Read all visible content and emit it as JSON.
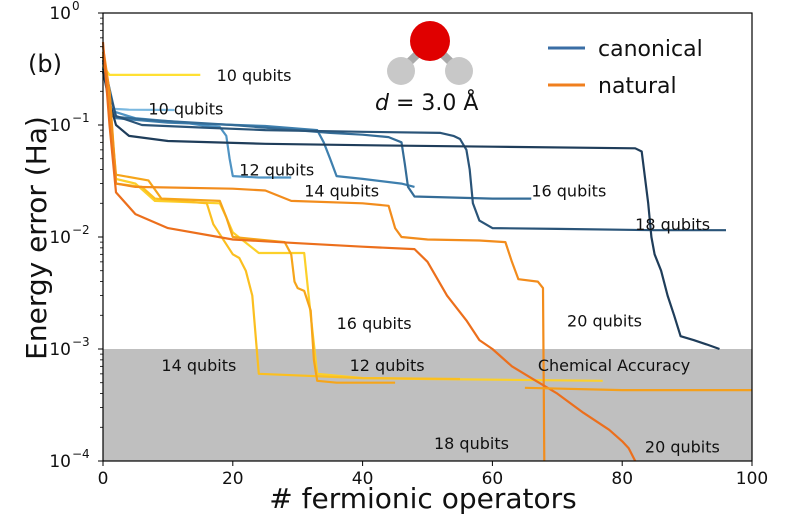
{
  "chart_data": {
    "type": "line",
    "panel_label": "(b)",
    "xlabel": "# fermionic operators",
    "ylabel": "Energy error (Ha)",
    "xlim": [
      0,
      100
    ],
    "ylim_log10": [
      -4,
      0
    ],
    "x_ticks": [
      {
        "value": 0,
        "label": "0"
      },
      {
        "value": 20,
        "label": "20"
      },
      {
        "value": 40,
        "label": "40"
      },
      {
        "value": 60,
        "label": "60"
      },
      {
        "value": 80,
        "label": "80"
      },
      {
        "value": 100,
        "label": "100"
      }
    ],
    "y_ticks": [
      {
        "exp": 0,
        "base": "10",
        "sup": "0"
      },
      {
        "exp": -1,
        "base": "10",
        "sup": "−1"
      },
      {
        "exp": -2,
        "base": "10",
        "sup": "−2"
      },
      {
        "exp": -3,
        "base": "10",
        "sup": "−3"
      },
      {
        "exp": -4,
        "base": "10",
        "sup": "−4"
      }
    ],
    "chemical_accuracy": {
      "label": "Chemical Accuracy",
      "threshold": 0.001,
      "color": "#bfbfbf"
    },
    "molecule": {
      "d_prefix": "d",
      "d_suffix": " = 3.0 Å",
      "oxygen_color": "#e00000",
      "hydrogen_color": "#c8c8c8"
    },
    "legend": [
      {
        "label": "canonical",
        "color": "#3a6ea5"
      },
      {
        "label": "natural",
        "color": "#f07f1e"
      }
    ],
    "series": [
      {
        "name": "canonical 10 qubits",
        "group": "canonical",
        "color": "#7ab8e0",
        "points": [
          [
            0,
            0.33
          ],
          [
            1,
            0.14
          ],
          [
            4,
            0.137
          ],
          [
            11,
            0.136
          ]
        ]
      },
      {
        "name": "canonical 12 qubits",
        "group": "canonical",
        "color": "#4f93c3",
        "points": [
          [
            0,
            0.38
          ],
          [
            1,
            0.145
          ],
          [
            2,
            0.13
          ],
          [
            5,
            0.115
          ],
          [
            12,
            0.106
          ],
          [
            16,
            0.098
          ],
          [
            18,
            0.096
          ],
          [
            19,
            0.08
          ],
          [
            19.5,
            0.05
          ],
          [
            20,
            0.035
          ],
          [
            24,
            0.034
          ],
          [
            29,
            0.034
          ]
        ]
      },
      {
        "name": "canonical 14 qubits",
        "group": "canonical",
        "color": "#3e7fae",
        "points": [
          [
            0,
            0.36
          ],
          [
            2,
            0.115
          ],
          [
            10,
            0.105
          ],
          [
            25,
            0.098
          ],
          [
            33,
            0.09
          ],
          [
            34,
            0.07
          ],
          [
            35,
            0.05
          ],
          [
            36,
            0.035
          ],
          [
            40,
            0.033
          ],
          [
            46,
            0.03
          ],
          [
            48,
            0.028
          ]
        ]
      },
      {
        "name": "canonical 16 qubits",
        "group": "canonical",
        "color": "#346c97",
        "points": [
          [
            0,
            0.38
          ],
          [
            2,
            0.118
          ],
          [
            8,
            0.11
          ],
          [
            20,
            0.1
          ],
          [
            35,
            0.085
          ],
          [
            40,
            0.082
          ],
          [
            44,
            0.078
          ],
          [
            46,
            0.07
          ],
          [
            46.5,
            0.045
          ],
          [
            47,
            0.028
          ],
          [
            48,
            0.023
          ],
          [
            60,
            0.022
          ],
          [
            66,
            0.022
          ]
        ]
      },
      {
        "name": "canonical 18 qubits",
        "group": "canonical",
        "color": "#2a5478",
        "points": [
          [
            0,
            0.32
          ],
          [
            2,
            0.12
          ],
          [
            6,
            0.1
          ],
          [
            15,
            0.095
          ],
          [
            25,
            0.09
          ],
          [
            40,
            0.087
          ],
          [
            52,
            0.085
          ],
          [
            54,
            0.08
          ],
          [
            55,
            0.075
          ],
          [
            56,
            0.06
          ],
          [
            56.5,
            0.04
          ],
          [
            57,
            0.02
          ],
          [
            58,
            0.014
          ],
          [
            60,
            0.012
          ],
          [
            70,
            0.0118
          ],
          [
            85,
            0.0115
          ],
          [
            96,
            0.0115
          ]
        ]
      },
      {
        "name": "canonical 20 qubits",
        "group": "canonical",
        "color": "#1f3d5a",
        "points": [
          [
            0,
            0.3
          ],
          [
            1,
            0.16
          ],
          [
            2,
            0.1
          ],
          [
            4,
            0.08
          ],
          [
            10,
            0.072
          ],
          [
            25,
            0.068
          ],
          [
            40,
            0.066
          ],
          [
            60,
            0.064
          ],
          [
            82,
            0.062
          ],
          [
            83,
            0.058
          ],
          [
            84,
            0.02
          ],
          [
            84.5,
            0.01
          ],
          [
            85,
            0.007
          ],
          [
            86,
            0.005
          ],
          [
            87,
            0.003
          ],
          [
            88,
            0.002
          ],
          [
            89,
            0.0013
          ],
          [
            91,
            0.0012
          ],
          [
            93,
            0.0011
          ],
          [
            95,
            0.001
          ]
        ]
      },
      {
        "name": "natural 10 qubits",
        "group": "natural",
        "color": "#ffe033",
        "points": [
          [
            0,
            0.34
          ],
          [
            1,
            0.28
          ],
          [
            15,
            0.28
          ]
        ]
      },
      {
        "name": "natural 12 qubits",
        "group": "natural",
        "color": "#fcd02a",
        "points": [
          [
            0,
            0.4
          ],
          [
            1,
            0.2
          ],
          [
            2,
            0.033
          ],
          [
            5,
            0.03
          ],
          [
            8,
            0.021
          ],
          [
            18,
            0.02
          ],
          [
            19,
            0.015
          ],
          [
            20,
            0.011
          ],
          [
            24,
            0.0072
          ],
          [
            31,
            0.0072
          ],
          [
            32,
            0.002
          ],
          [
            33,
            0.0006
          ],
          [
            40,
            0.00055
          ],
          [
            50,
            0.00054
          ],
          [
            77,
            0.00052
          ]
        ]
      },
      {
        "name": "natural 14 qubits",
        "group": "natural",
        "color": "#fbbf20",
        "points": [
          [
            0,
            0.42
          ],
          [
            1,
            0.18
          ],
          [
            2,
            0.03
          ],
          [
            6,
            0.028
          ],
          [
            8,
            0.022
          ],
          [
            16,
            0.02
          ],
          [
            17,
            0.013
          ],
          [
            20,
            0.007
          ],
          [
            21,
            0.0065
          ],
          [
            22,
            0.005
          ],
          [
            23,
            0.003
          ],
          [
            24,
            0.0006
          ],
          [
            40,
            0.00055
          ],
          [
            55,
            0.00054
          ]
        ]
      },
      {
        "name": "natural 16 qubits",
        "group": "natural",
        "color": "#f6a51a",
        "points": [
          [
            0,
            0.45
          ],
          [
            1,
            0.15
          ],
          [
            2,
            0.036
          ],
          [
            7,
            0.032
          ],
          [
            9,
            0.022
          ],
          [
            18,
            0.021
          ],
          [
            19,
            0.015
          ],
          [
            20,
            0.01
          ],
          [
            28,
            0.009
          ],
          [
            29,
            0.007
          ],
          [
            29.5,
            0.004
          ],
          [
            30,
            0.0035
          ],
          [
            31,
            0.0033
          ],
          [
            32,
            0.0022
          ],
          [
            32.5,
            0.0008
          ],
          [
            33,
            0.00052
          ],
          [
            36,
            0.0005
          ],
          [
            45,
            0.0005
          ]
        ]
      },
      {
        "name": "natural 18 qubits",
        "group": "natural",
        "color": "#f28c1c",
        "points": [
          [
            0,
            0.5
          ],
          [
            1,
            0.2
          ],
          [
            2,
            0.03
          ],
          [
            5,
            0.028
          ],
          [
            20,
            0.027
          ],
          [
            25,
            0.026
          ],
          [
            29,
            0.021
          ],
          [
            40,
            0.02
          ],
          [
            44,
            0.019
          ],
          [
            45,
            0.012
          ],
          [
            46,
            0.01
          ],
          [
            50,
            0.0095
          ],
          [
            58,
            0.0093
          ],
          [
            62,
            0.009
          ],
          [
            63,
            0.006
          ],
          [
            64,
            0.0042
          ],
          [
            67,
            0.004
          ],
          [
            67.8,
            0.0035
          ],
          [
            68,
            0.0001
          ]
        ]
      },
      {
        "name": "natural 20 qubits",
        "group": "natural",
        "color": "#ec6f1c",
        "points": [
          [
            0,
            0.55
          ],
          [
            1,
            0.1
          ],
          [
            2,
            0.025
          ],
          [
            5,
            0.016
          ],
          [
            10,
            0.012
          ],
          [
            20,
            0.0095
          ],
          [
            30,
            0.0088
          ],
          [
            40,
            0.0082
          ],
          [
            48,
            0.0078
          ],
          [
            50,
            0.006
          ],
          [
            53,
            0.003
          ],
          [
            56,
            0.0018
          ],
          [
            58,
            0.0012
          ],
          [
            60,
            0.001
          ],
          [
            63,
            0.0007
          ],
          [
            66,
            0.00055
          ],
          [
            70,
            0.0004
          ],
          [
            74,
            0.00027
          ],
          [
            78,
            0.00019
          ],
          [
            80,
            0.00015
          ],
          [
            81,
            0.00013
          ],
          [
            82,
            0.0001
          ]
        ]
      },
      {
        "name": "natural 20 qubits (tail)",
        "group": "natural",
        "color": "#f5a01c",
        "points": [
          [
            65,
            0.00045
          ],
          [
            80,
            0.00043
          ],
          [
            100,
            0.00043
          ]
        ]
      }
    ],
    "annotations": [
      {
        "text": "10 qubits",
        "x": 17.5,
        "y": 0.28
      },
      {
        "text": "10 qubits",
        "x": 7,
        "y": 0.14
      },
      {
        "text": "12 qubits",
        "x": 21,
        "y": 0.04
      },
      {
        "text": "14 qubits",
        "x": 31,
        "y": 0.026
      },
      {
        "text": "16 qubits",
        "x": 66,
        "y": 0.026
      },
      {
        "text": "18 qubits",
        "x": 82,
        "y": 0.013
      },
      {
        "text": "16 qubits",
        "x": 36,
        "y": 0.0017
      },
      {
        "text": "20 qubits",
        "x": 71.5,
        "y": 0.0018
      },
      {
        "text": "14 qubits",
        "x": 9,
        "y": 0.00072
      },
      {
        "text": "12 qubits",
        "x": 38,
        "y": 0.00072
      },
      {
        "text": "Chemical Accuracy",
        "x": 67,
        "y": 0.00072
      },
      {
        "text": "18 qubits",
        "x": 51,
        "y": 0.000145
      },
      {
        "text": "20 qubits",
        "x": 83.5,
        "y": 0.000135
      }
    ]
  }
}
